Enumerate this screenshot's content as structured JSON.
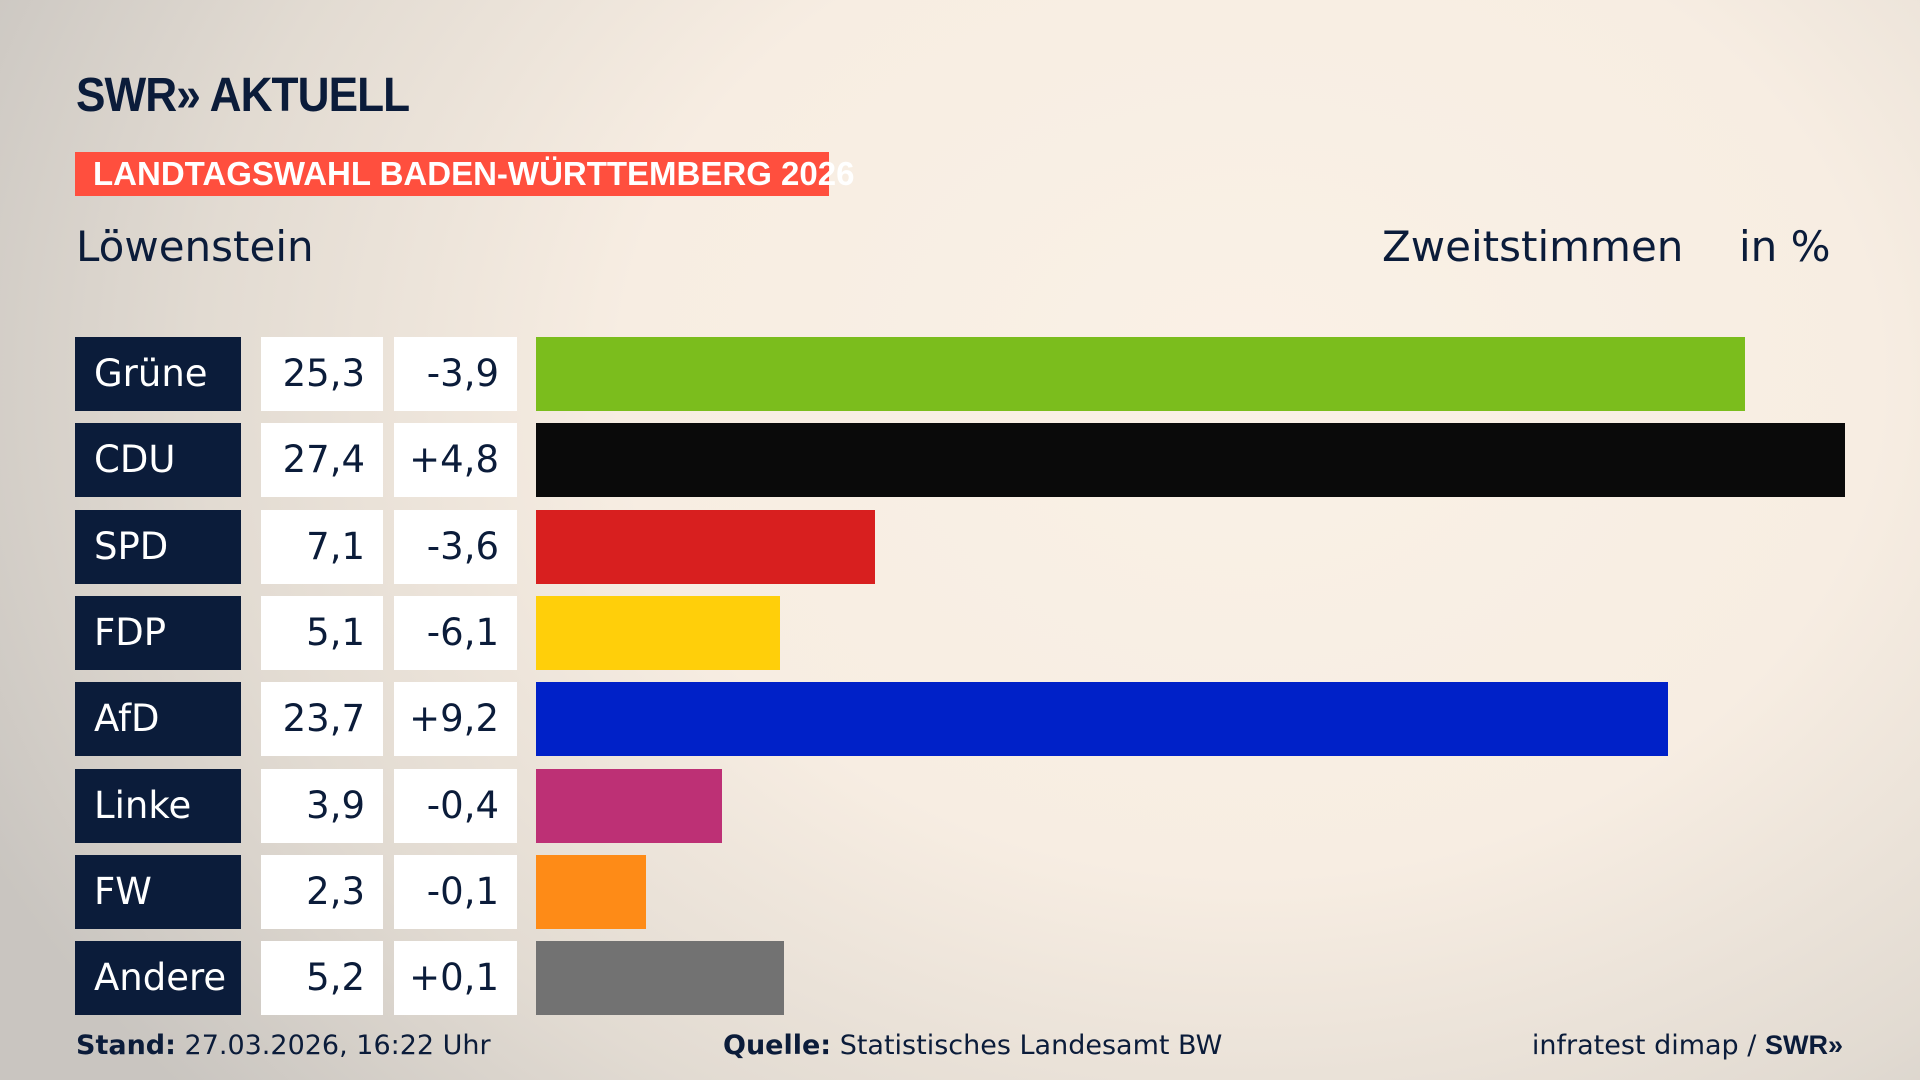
{
  "header": {
    "logo": "SWR» AKTUELL",
    "banner": "LANDTAGSWAHL BADEN-WÜRTTEMBERG 2026",
    "location": "Löwenstein",
    "measure": "Zweitstimmen",
    "unit": "in %"
  },
  "chart_data": {
    "type": "bar",
    "orientation": "horizontal",
    "categories": [
      "Grüne",
      "CDU",
      "SPD",
      "FDP",
      "AfD",
      "Linke",
      "FW",
      "Andere"
    ],
    "values": [
      25.3,
      27.4,
      7.1,
      5.1,
      23.7,
      3.9,
      2.3,
      5.2
    ],
    "value_labels": [
      "25,3",
      "27,4",
      "7,1",
      "5,1",
      "23,7",
      "3,9",
      "2,3",
      "5,2"
    ],
    "change_labels": [
      "-3,9",
      "+4,8",
      "-3,6",
      "-6,1",
      "+9,2",
      "-0,4",
      "-0,1",
      "+0,1"
    ],
    "changes": [
      -3.9,
      4.8,
      -3.6,
      -6.1,
      9.2,
      -0.4,
      -0.1,
      0.1
    ],
    "colors": [
      "#7bbd1d",
      "#0a0a0a",
      "#d81f1f",
      "#ffcf0a",
      "#0021c8",
      "#bd3075",
      "#fe8b17",
      "#727272"
    ]
  },
  "footer": {
    "stand_label": "Stand:",
    "stand_value": "27.03.2026, 16:22 Uhr",
    "source_label": "Quelle:",
    "source_value": "Statistisches Landesamt BW",
    "credit": "infratest dimap /",
    "credit_logo": "SWR»"
  }
}
